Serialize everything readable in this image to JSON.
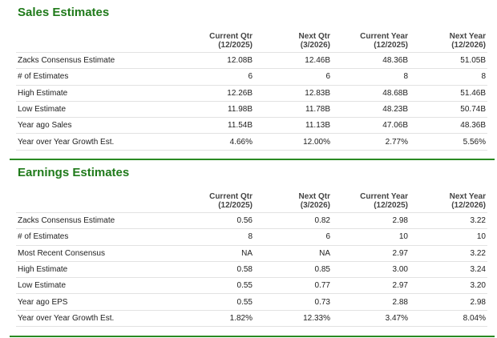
{
  "sections": [
    {
      "title": "Sales Estimates",
      "columns": [
        {
          "name": "Current Qtr",
          "period": "(12/2025)"
        },
        {
          "name": "Next Qtr",
          "period": "(3/2026)"
        },
        {
          "name": "Current Year",
          "period": "(12/2025)"
        },
        {
          "name": "Next Year",
          "period": "(12/2026)"
        }
      ],
      "rows": [
        [
          "Zacks Consensus Estimate",
          "12.08B",
          "12.46B",
          "48.36B",
          "51.05B"
        ],
        [
          "# of Estimates",
          "6",
          "6",
          "8",
          "8"
        ],
        [
          "High Estimate",
          "12.26B",
          "12.83B",
          "48.68B",
          "51.46B"
        ],
        [
          "Low Estimate",
          "11.98B",
          "11.78B",
          "48.23B",
          "50.74B"
        ],
        [
          "Year ago Sales",
          "11.54B",
          "11.13B",
          "47.06B",
          "48.36B"
        ],
        [
          "Year over Year Growth Est.",
          "4.66%",
          "12.00%",
          "2.77%",
          "5.56%"
        ]
      ]
    },
    {
      "title": "Earnings Estimates",
      "columns": [
        {
          "name": "Current Qtr",
          "period": "(12/2025)"
        },
        {
          "name": "Next Qtr",
          "period": "(3/2026)"
        },
        {
          "name": "Current Year",
          "period": "(12/2025)"
        },
        {
          "name": "Next Year",
          "period": "(12/2026)"
        }
      ],
      "rows": [
        [
          "Zacks Consensus Estimate",
          "0.56",
          "0.82",
          "2.98",
          "3.22"
        ],
        [
          "# of Estimates",
          "8",
          "6",
          "10",
          "10"
        ],
        [
          "Most Recent Consensus",
          "NA",
          "NA",
          "2.97",
          "3.22"
        ],
        [
          "High Estimate",
          "0.58",
          "0.85",
          "3.00",
          "3.24"
        ],
        [
          "Low Estimate",
          "0.55",
          "0.77",
          "2.97",
          "3.20"
        ],
        [
          "Year ago EPS",
          "0.55",
          "0.73",
          "2.88",
          "2.98"
        ],
        [
          "Year over Year Growth Est.",
          "1.82%",
          "12.33%",
          "3.47%",
          "8.04%"
        ]
      ]
    }
  ]
}
